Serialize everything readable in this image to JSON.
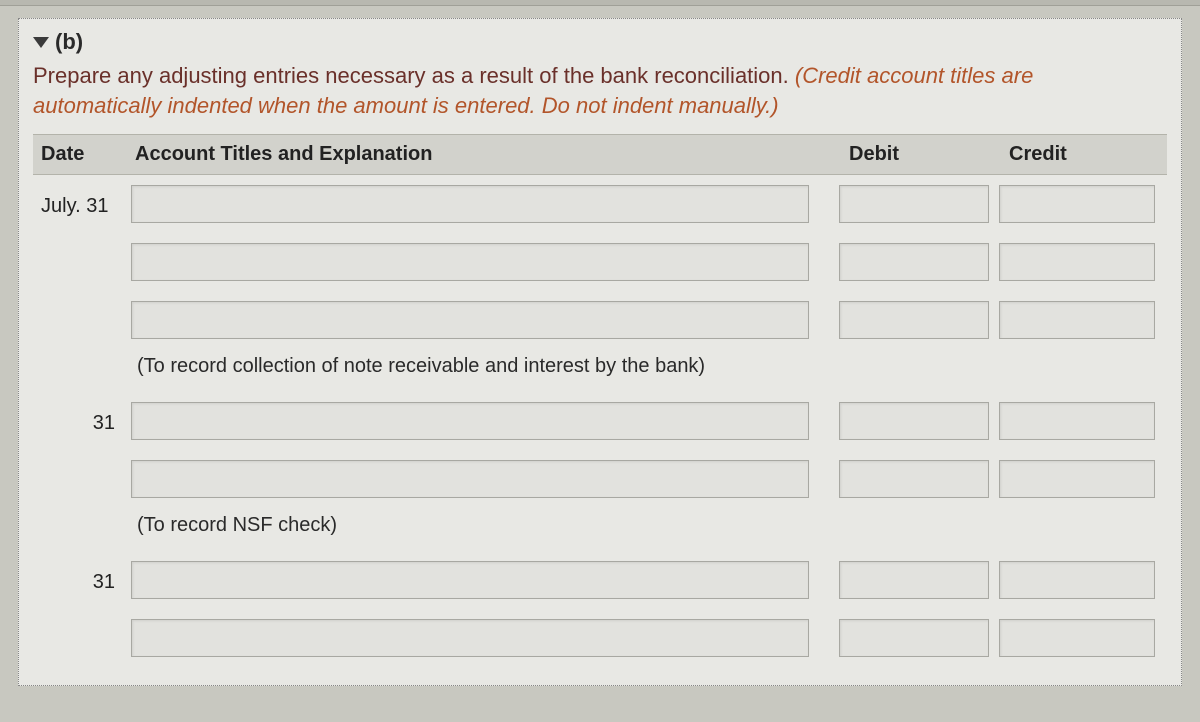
{
  "section": {
    "label": "(b)",
    "instruction_main": "Prepare any adjusting entries necessary as a result of the bank reconciliation. ",
    "instruction_hint": "(Credit account titles are automatically indented when the amount is entered. Do not indent manually.)"
  },
  "table": {
    "headers": {
      "date": "Date",
      "account": "Account Titles and Explanation",
      "debit": "Debit",
      "credit": "Credit"
    },
    "groups": [
      {
        "date": "July. 31",
        "date_align": "left",
        "lines": [
          {
            "account": "",
            "debit": "",
            "credit": ""
          },
          {
            "account": "",
            "debit": "",
            "credit": ""
          },
          {
            "account": "",
            "debit": "",
            "credit": ""
          }
        ],
        "explanation": "(To record collection of note receivable and interest by the bank)"
      },
      {
        "date": "31",
        "date_align": "right",
        "lines": [
          {
            "account": "",
            "debit": "",
            "credit": ""
          },
          {
            "account": "",
            "debit": "",
            "credit": ""
          }
        ],
        "explanation": "(To record NSF check)"
      },
      {
        "date": "31",
        "date_align": "right",
        "lines": [
          {
            "account": "",
            "debit": "",
            "credit": ""
          },
          {
            "account": "",
            "debit": "",
            "credit": ""
          }
        ],
        "explanation": ""
      }
    ]
  },
  "colors": {
    "page_bg": "#c8c8c0",
    "panel_bg": "#e8e8e4",
    "header_bg": "#d2d2cc",
    "text_dark": "#2a2a2a",
    "instruction_color": "#6a302a",
    "hint_color": "#b2552a",
    "input_bg": "#e2e2de",
    "input_border": "#a8a8a2"
  }
}
